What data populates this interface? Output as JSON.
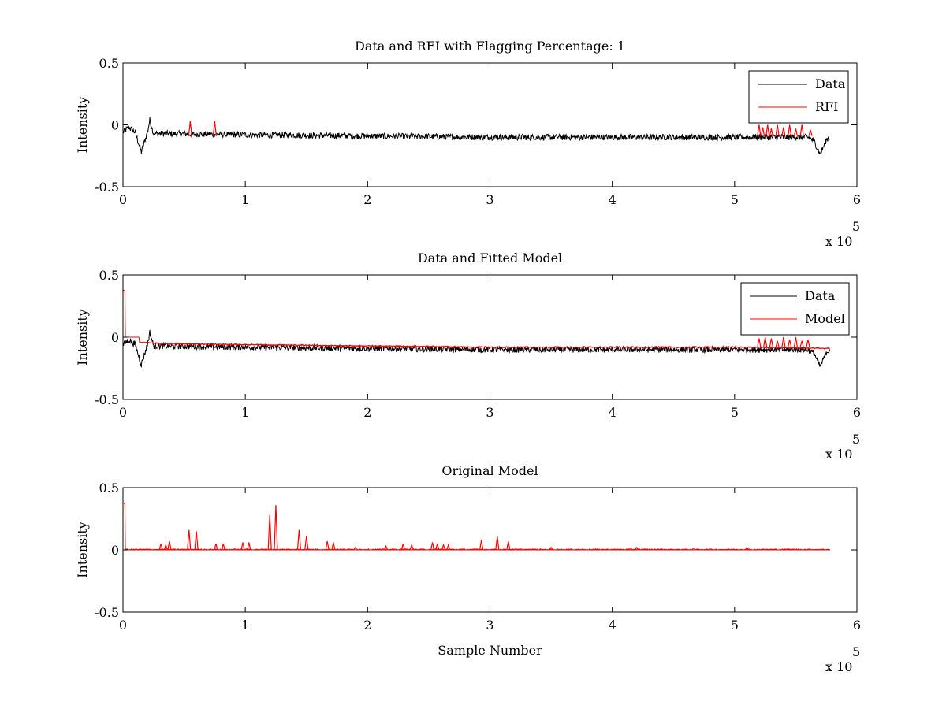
{
  "chart_data": [
    {
      "type": "line",
      "title": "Data and RFI with Flagging Percentage: 1",
      "xlabel": "",
      "ylabel": "Intensity",
      "xlim": [
        0,
        600000
      ],
      "ylim": [
        -0.5,
        0.5
      ],
      "xticks": [
        0,
        100000,
        200000,
        300000,
        400000,
        500000,
        600000
      ],
      "xtick_labels": [
        "0",
        "1",
        "2",
        "3",
        "4",
        "5",
        "6"
      ],
      "yticks": [
        -0.5,
        0,
        0.5
      ],
      "ytick_labels": [
        "-0.5",
        "0",
        "0.5"
      ],
      "x_multiplier": "x 10",
      "x_multiplier_exp": "5",
      "grid": false,
      "legend": "top-right",
      "series": [
        {
          "name": "Data",
          "color": "#000000",
          "baseline": [
            [
              0,
              -0.06
            ],
            [
              5000,
              -0.02
            ],
            [
              10000,
              -0.06
            ],
            [
              15000,
              -0.22
            ],
            [
              20000,
              -0.06
            ],
            [
              22000,
              0.04
            ],
            [
              25000,
              -0.07
            ],
            [
              100000,
              -0.08
            ],
            [
              300000,
              -0.1
            ],
            [
              500000,
              -0.1
            ],
            [
              560000,
              -0.1
            ],
            [
              565000,
              -0.13
            ],
            [
              570000,
              -0.24
            ],
            [
              575000,
              -0.12
            ],
            [
              578000,
              -0.1
            ]
          ],
          "noise_amplitude": 0.025
        },
        {
          "name": "RFI",
          "color": "#ff0000",
          "spikes": [
            [
              55000,
              0.03
            ],
            [
              75000,
              0.03
            ],
            [
              520000,
              0.0
            ],
            [
              523000,
              -0.02
            ],
            [
              527000,
              0.0
            ],
            [
              530000,
              -0.03
            ],
            [
              535000,
              0.0
            ],
            [
              540000,
              -0.02
            ],
            [
              545000,
              0.0
            ],
            [
              550000,
              -0.03
            ],
            [
              555000,
              0.0
            ],
            [
              562000,
              -0.04
            ]
          ],
          "spike_base": -0.09
        }
      ]
    },
    {
      "type": "line",
      "title": "Data and Fitted Model",
      "xlabel": "",
      "ylabel": "Intensity",
      "xlim": [
        0,
        600000
      ],
      "ylim": [
        -0.5,
        0.5
      ],
      "xticks": [
        0,
        100000,
        200000,
        300000,
        400000,
        500000,
        600000
      ],
      "xtick_labels": [
        "0",
        "1",
        "2",
        "3",
        "4",
        "5",
        "6"
      ],
      "yticks": [
        -0.5,
        0,
        0.5
      ],
      "ytick_labels": [
        "-0.5",
        "0",
        "0.5"
      ],
      "x_multiplier": "x 10",
      "x_multiplier_exp": "5",
      "grid": false,
      "legend": "top-right",
      "series": [
        {
          "name": "Data",
          "color": "#000000",
          "baseline": [
            [
              0,
              -0.06
            ],
            [
              5000,
              -0.02
            ],
            [
              10000,
              -0.06
            ],
            [
              15000,
              -0.22
            ],
            [
              20000,
              -0.06
            ],
            [
              22000,
              0.04
            ],
            [
              25000,
              -0.07
            ],
            [
              100000,
              -0.08
            ],
            [
              300000,
              -0.1
            ],
            [
              500000,
              -0.1
            ],
            [
              560000,
              -0.1
            ],
            [
              565000,
              -0.13
            ],
            [
              570000,
              -0.24
            ],
            [
              575000,
              -0.12
            ],
            [
              578000,
              -0.1
            ]
          ],
          "noise_amplitude": 0.025
        },
        {
          "name": "Model",
          "color": "#ff0000",
          "line": [
            [
              0,
              0.38
            ],
            [
              1500,
              0.37
            ],
            [
              2000,
              0.0
            ],
            [
              13000,
              0.0
            ],
            [
              13500,
              -0.04
            ],
            [
              20000,
              -0.04
            ],
            [
              25000,
              -0.05
            ],
            [
              100000,
              -0.06
            ],
            [
              200000,
              -0.07
            ],
            [
              300000,
              -0.08
            ],
            [
              400000,
              -0.08
            ],
            [
              500000,
              -0.08
            ],
            [
              578000,
              -0.09
            ]
          ],
          "spikes": [
            [
              520000,
              -0.01
            ],
            [
              525000,
              0.0
            ],
            [
              530000,
              -0.01
            ],
            [
              535000,
              -0.03
            ],
            [
              540000,
              0.0
            ],
            [
              545000,
              -0.02
            ],
            [
              550000,
              0.0
            ],
            [
              555000,
              -0.03
            ],
            [
              560000,
              -0.02
            ]
          ],
          "spike_base": -0.08
        }
      ]
    },
    {
      "type": "line",
      "title": "Original Model",
      "xlabel": "Sample Number",
      "ylabel": "Intensity",
      "xlim": [
        0,
        600000
      ],
      "ylim": [
        -0.5,
        0.5
      ],
      "xticks": [
        0,
        100000,
        200000,
        300000,
        400000,
        500000,
        600000
      ],
      "xtick_labels": [
        "0",
        "1",
        "2",
        "3",
        "4",
        "5",
        "6"
      ],
      "yticks": [
        -0.5,
        0,
        0.5
      ],
      "ytick_labels": [
        "-0.5",
        "0",
        "0.5"
      ],
      "x_multiplier": "x 10",
      "x_multiplier_exp": "5",
      "grid": false,
      "legend": "none",
      "series": [
        {
          "color": "#ff0000",
          "line": [
            [
              0,
              0.38
            ],
            [
              1500,
              0.37
            ],
            [
              2000,
              0.0
            ],
            [
              578000,
              0.0
            ]
          ],
          "spikes": [
            [
              31000,
              0.05
            ],
            [
              35000,
              0.04
            ],
            [
              38000,
              0.07
            ],
            [
              54000,
              0.16
            ],
            [
              60000,
              0.15
            ],
            [
              76000,
              0.05
            ],
            [
              82000,
              0.05
            ],
            [
              98000,
              0.06
            ],
            [
              103000,
              0.06
            ],
            [
              120000,
              0.28
            ],
            [
              125000,
              0.36
            ],
            [
              144000,
              0.16
            ],
            [
              150000,
              0.11
            ],
            [
              167000,
              0.07
            ],
            [
              172000,
              0.06
            ],
            [
              190000,
              0.02
            ],
            [
              215000,
              0.03
            ],
            [
              229000,
              0.05
            ],
            [
              236000,
              0.04
            ],
            [
              253000,
              0.06
            ],
            [
              257000,
              0.05
            ],
            [
              262000,
              0.04
            ],
            [
              266000,
              0.04
            ],
            [
              293000,
              0.08
            ],
            [
              306000,
              0.11
            ],
            [
              315000,
              0.07
            ],
            [
              350000,
              0.02
            ],
            [
              420000,
              0.02
            ],
            [
              510000,
              0.02
            ]
          ],
          "spike_base": 0.0
        }
      ]
    }
  ]
}
